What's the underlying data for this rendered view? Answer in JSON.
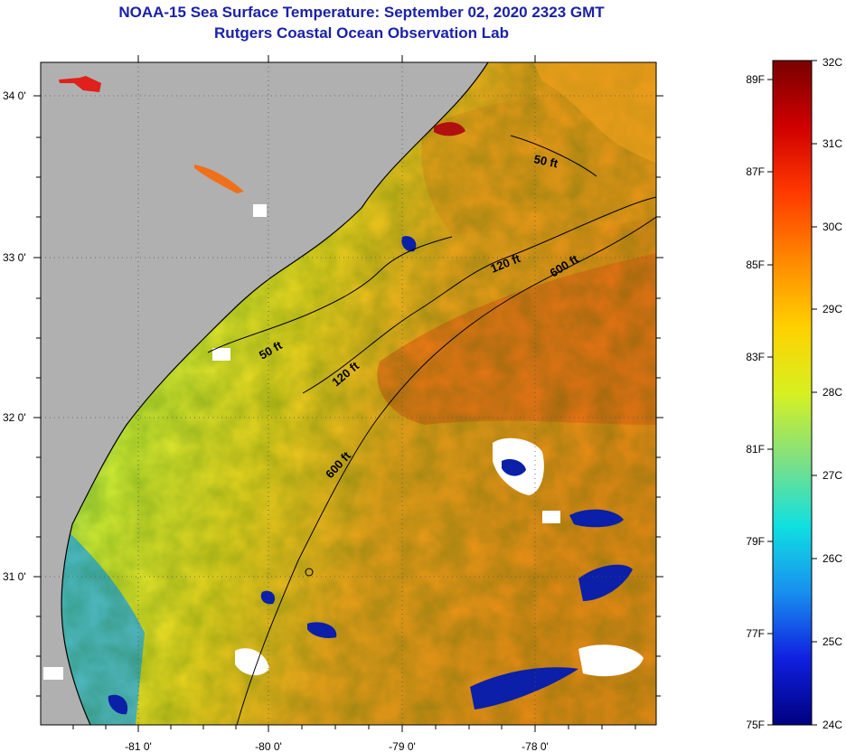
{
  "header": {
    "title": "NOAA-15 Sea Surface Temperature:  September 02, 2020 2323 GMT",
    "subtitle": "Rutgers Coastal Ocean Observation Lab"
  },
  "map": {
    "lon_ticks": [
      "-81 0'",
      "-80 0'",
      "-79 0'",
      "-78 0'"
    ],
    "lat_ticks": [
      "34 0'",
      "33 0'",
      "32 0'",
      "31 0'"
    ],
    "contour_labels": {
      "c50_a": "50 ft",
      "c50_b": "50 ft",
      "c120_a": "120 ft",
      "c120_b": "120 ft",
      "c600_a": "600 ft",
      "c600_b": "600 ft"
    },
    "colors": {
      "land": "#b0b0b0",
      "cloud": "#ffffff"
    }
  },
  "colorbar": {
    "fahrenheit": [
      "89F",
      "87F",
      "85F",
      "83F",
      "81F",
      "79F",
      "77F",
      "75F"
    ],
    "celsius": [
      "32C",
      "31C",
      "30C",
      "29C",
      "28C",
      "27C",
      "26C",
      "25C",
      "24C"
    ]
  }
}
